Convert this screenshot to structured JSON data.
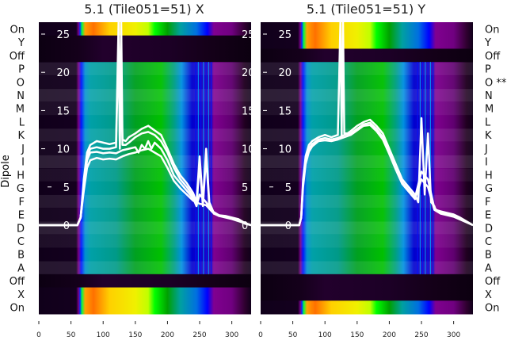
{
  "chart_data": [
    {
      "type": "heatmap",
      "title": "5.1 (Tile051=51) X",
      "ylabel": "Dipole",
      "row_labels": [
        "On",
        "Y",
        "Off",
        "P",
        "O",
        "N",
        "M",
        "L",
        "K",
        "J",
        "I",
        "H",
        "G",
        "F",
        "E",
        "D",
        "C",
        "B",
        "A",
        "Off",
        "X",
        "On"
      ],
      "bright_rows": [
        0,
        20,
        21
      ],
      "dark_rows": [
        1,
        2,
        19
      ],
      "xlim": [
        0,
        330
      ],
      "xticks": [
        0,
        50,
        100,
        150,
        200,
        250,
        300
      ],
      "overlay_ylim": [
        -11.5,
        26.5
      ],
      "overlay_yticks": [
        0,
        5,
        10,
        15,
        20,
        25
      ],
      "overlay_series": [
        {
          "name": "x1",
          "x": [
            0,
            60,
            65,
            70,
            75,
            80,
            90,
            100,
            110,
            120,
            124,
            126,
            128,
            130,
            135,
            140,
            150,
            160,
            170,
            180,
            190,
            200,
            210,
            220,
            230,
            240,
            245,
            250,
            255,
            260,
            265,
            270,
            272,
            280,
            290,
            300,
            310,
            320,
            330
          ],
          "y": [
            0,
            0,
            1,
            6,
            9.5,
            10.5,
            11,
            10.8,
            10.6,
            10.8,
            27,
            10.5,
            27,
            11.2,
            11,
            11.5,
            12,
            12.6,
            13,
            12.4,
            11.8,
            10,
            8,
            6.5,
            5.5,
            4.2,
            3,
            9,
            3,
            10,
            3,
            2,
            1.6,
            1.3,
            1.2,
            1,
            0.8,
            0.3,
            0
          ]
        },
        {
          "name": "x2",
          "x": [
            0,
            60,
            65,
            70,
            75,
            80,
            90,
            100,
            110,
            120,
            124,
            126,
            128,
            130,
            135,
            140,
            150,
            160,
            170,
            180,
            190,
            200,
            210,
            220,
            230,
            240,
            245,
            250,
            255,
            260,
            265,
            270,
            272,
            280,
            290,
            300,
            310,
            320,
            330
          ],
          "y": [
            0,
            0,
            1,
            5.5,
            9,
            10,
            10.2,
            10,
            10,
            10.2,
            24,
            10,
            20,
            10.5,
            10.5,
            10.8,
            11.5,
            12,
            12.2,
            11.8,
            11,
            9.5,
            7.5,
            6,
            5,
            3.8,
            2.5,
            8,
            2.5,
            9,
            2.5,
            1.8,
            1.5,
            1.2,
            1.1,
            0.9,
            0.7,
            0.2,
            0
          ]
        },
        {
          "name": "x3",
          "x": [
            0,
            60,
            65,
            70,
            75,
            80,
            90,
            100,
            110,
            120,
            130,
            140,
            150,
            155,
            160,
            165,
            170,
            175,
            180,
            190,
            200,
            210,
            220,
            230,
            240,
            245,
            250,
            260,
            270,
            280,
            300,
            330
          ],
          "y": [
            0,
            0,
            1,
            5,
            8.5,
            9.5,
            9.6,
            9.4,
            9.5,
            9.4,
            9.8,
            10,
            10.2,
            9.5,
            10.5,
            10,
            11,
            10,
            10.8,
            10,
            8.5,
            6.5,
            5.5,
            4.5,
            3.5,
            2.5,
            4,
            3,
            1.8,
            1.3,
            0.9,
            0
          ]
        },
        {
          "name": "x4",
          "x": [
            0,
            60,
            65,
            70,
            75,
            80,
            90,
            100,
            110,
            120,
            130,
            140,
            150,
            160,
            170,
            180,
            190,
            200,
            210,
            220,
            230,
            240,
            250,
            260,
            270,
            280,
            300,
            330
          ],
          "y": [
            0,
            0,
            1,
            4.5,
            7.5,
            8.5,
            8.8,
            8.6,
            8.7,
            8.6,
            9,
            9.3,
            9.5,
            9.8,
            10,
            9.5,
            9,
            7.5,
            5.8,
            4.8,
            4,
            3.2,
            2.8,
            2.6,
            1.7,
            1.2,
            0.8,
            0
          ]
        }
      ]
    },
    {
      "type": "heatmap",
      "title": "5.1 (Tile051=51) Y",
      "row_labels": [
        "On",
        "Y",
        "Off",
        "P",
        "O **",
        "N",
        "M",
        "L",
        "K",
        "J",
        "I",
        "H",
        "G",
        "F",
        "E",
        "D",
        "C",
        "B",
        "A",
        "Off",
        "X",
        "On"
      ],
      "bright_rows": [
        0,
        1,
        21
      ],
      "dark_rows": [
        2,
        19,
        20
      ],
      "xlim": [
        0,
        330
      ],
      "xticks": [
        0,
        50,
        100,
        150,
        200,
        250,
        300
      ],
      "overlay_ylim": [
        -11.5,
        26.5
      ],
      "overlay_yticks": [
        0,
        5,
        10,
        15,
        20,
        25
      ],
      "overlay_series": [
        {
          "name": "y1",
          "x": [
            0,
            60,
            63,
            66,
            70,
            75,
            80,
            90,
            100,
            110,
            120,
            124,
            126,
            128,
            130,
            135,
            140,
            150,
            160,
            170,
            180,
            190,
            200,
            210,
            220,
            230,
            240,
            245,
            250,
            255,
            260,
            265,
            270,
            272,
            280,
            290,
            300,
            310,
            320,
            330
          ],
          "y": [
            0,
            0,
            1,
            6,
            9,
            10.5,
            11,
            11.5,
            11.8,
            11.5,
            11.8,
            27,
            11.5,
            27,
            12,
            12,
            12.3,
            13,
            13.5,
            13.8,
            13,
            12,
            10,
            8,
            6,
            5,
            4,
            3,
            14,
            4,
            12,
            3,
            2.5,
            2,
            1.8,
            1.6,
            1.4,
            1,
            0.5,
            0
          ]
        },
        {
          "name": "y2",
          "x": [
            0,
            60,
            63,
            66,
            70,
            75,
            80,
            90,
            100,
            110,
            120,
            130,
            140,
            150,
            160,
            170,
            180,
            190,
            200,
            210,
            220,
            230,
            240,
            250,
            260,
            270,
            280,
            300,
            330
          ],
          "y": [
            0,
            0,
            1,
            5.5,
            8.5,
            10,
            10.6,
            11.2,
            11.4,
            11.2,
            11.4,
            11.8,
            12,
            12.6,
            13.2,
            13.4,
            12.6,
            11.5,
            9.6,
            7.6,
            5.6,
            4.6,
            3.6,
            7,
            6,
            2.2,
            1.6,
            1.2,
            0
          ]
        },
        {
          "name": "y3",
          "x": [
            0,
            60,
            63,
            66,
            70,
            75,
            80,
            90,
            100,
            110,
            120,
            130,
            140,
            150,
            160,
            170,
            180,
            190,
            200,
            210,
            220,
            230,
            240,
            250,
            260,
            270,
            280,
            300,
            330
          ],
          "y": [
            0,
            0,
            1,
            5,
            8,
            9.6,
            10.3,
            11,
            11.1,
            11,
            11.2,
            11.5,
            11.8,
            12.4,
            13,
            13.1,
            12.3,
            11.2,
            9.3,
            7.3,
            5.4,
            4.4,
            3.4,
            6,
            5,
            2,
            1.5,
            1.1,
            0
          ]
        }
      ]
    }
  ],
  "colormap": {
    "mid": [
      [
        0,
        "#10001a"
      ],
      [
        58,
        "#14001f"
      ],
      [
        62,
        "#7a008a"
      ],
      [
        66,
        "#0018ff"
      ],
      [
        72,
        "#0090d0"
      ],
      [
        80,
        "#00a0a8"
      ],
      [
        120,
        "#009a88"
      ],
      [
        150,
        "#00a020"
      ],
      [
        190,
        "#00c000"
      ],
      [
        210,
        "#00a080"
      ],
      [
        222,
        "#0090e0"
      ],
      [
        238,
        "#0000d0"
      ],
      [
        268,
        "#2a00b0"
      ],
      [
        272,
        "#800090"
      ],
      [
        300,
        "#600070"
      ],
      [
        320,
        "#200020"
      ],
      [
        330,
        "#10001a"
      ]
    ],
    "bright": [
      [
        0,
        "#10001a"
      ],
      [
        58,
        "#14001f"
      ],
      [
        62,
        "#7a008a"
      ],
      [
        64,
        "#0030ff"
      ],
      [
        67,
        "#00ff40"
      ],
      [
        72,
        "#ffa000"
      ],
      [
        85,
        "#ff7000"
      ],
      [
        110,
        "#ffd000"
      ],
      [
        150,
        "#f0f000"
      ],
      [
        170,
        "#c0ff00"
      ],
      [
        180,
        "#00ff00"
      ],
      [
        200,
        "#00a000"
      ],
      [
        220,
        "#00a0a0"
      ],
      [
        245,
        "#0070e0"
      ],
      [
        262,
        "#0000ff"
      ],
      [
        272,
        "#800090"
      ],
      [
        300,
        "#700080"
      ],
      [
        320,
        "#300030"
      ],
      [
        330,
        "#10001a"
      ]
    ],
    "dark": [
      [
        0,
        "#0c0012"
      ],
      [
        60,
        "#14001a"
      ],
      [
        100,
        "#22002c"
      ],
      [
        200,
        "#1c0026"
      ],
      [
        270,
        "#140018"
      ],
      [
        330,
        "#0c0010"
      ]
    ]
  }
}
